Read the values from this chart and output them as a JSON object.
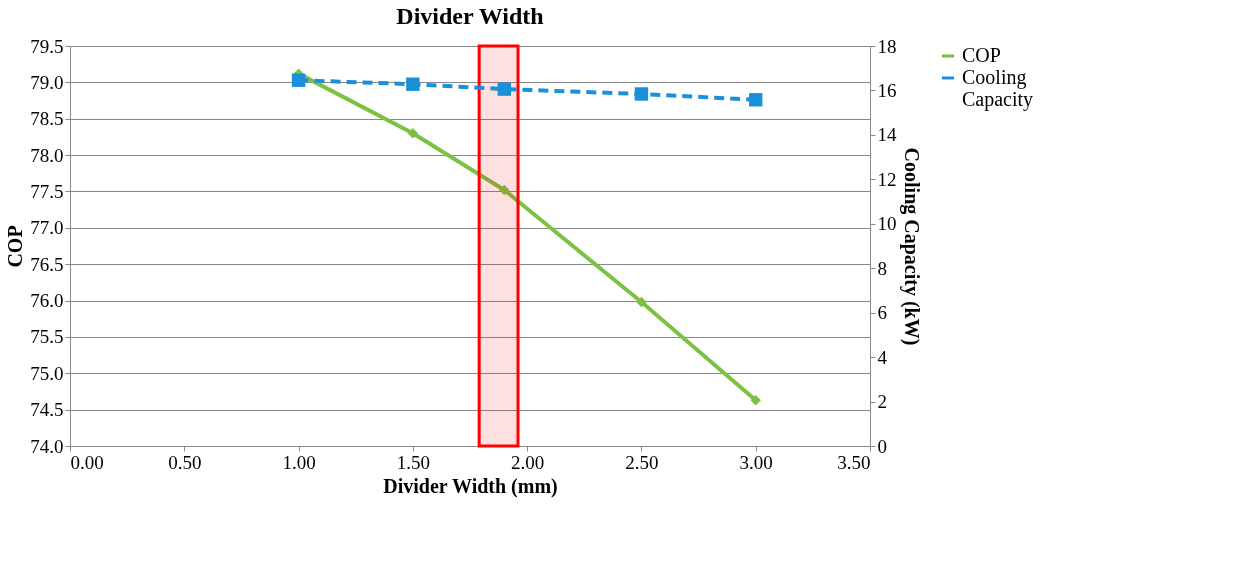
{
  "chart_data": {
    "type": "line",
    "title": "Divider Width",
    "xlabel": "Divider Width (mm)",
    "ylabel": "COP",
    "y2label": "Cooling Capacity (kW)",
    "x": [
      1.0,
      1.5,
      1.9,
      2.5,
      3.0
    ],
    "series": [
      {
        "name": "COP",
        "color": "#7cc242",
        "marker": "diamond",
        "line_style": "solid",
        "values": [
          79.12,
          78.3,
          77.52,
          75.98,
          74.63
        ]
      },
      {
        "name": "Cooling Capacity",
        "color": "#1a90d8",
        "marker": "square",
        "line_style": "dashed",
        "axis": "y2",
        "values": [
          16.46,
          16.28,
          16.06,
          15.84,
          15.58
        ]
      }
    ],
    "xlim": [
      0,
      3.5
    ],
    "xticks": [
      {
        "value": 0,
        "label": "0.00"
      },
      {
        "value": 0.5,
        "label": "0.50"
      },
      {
        "value": 1,
        "label": "1.00"
      },
      {
        "value": 1.5,
        "label": "1.50"
      },
      {
        "value": 2,
        "label": "2.00"
      },
      {
        "value": 2.5,
        "label": "2.50"
      },
      {
        "value": 3,
        "label": "3.00"
      },
      {
        "value": 3.5,
        "label": "3.50"
      }
    ],
    "ylim": [
      74,
      79.5
    ],
    "yticks": [
      {
        "value": 74,
        "label": "74.0"
      },
      74.5,
      {
        "value": 75,
        "label": "75.0"
      },
      75.5,
      {
        "value": 76,
        "label": "76.0"
      },
      76.5,
      {
        "value": 77,
        "label": "77.0"
      },
      77.5,
      {
        "value": 78,
        "label": "78.0"
      },
      78.5,
      {
        "value": 79,
        "label": "79.0"
      },
      79.5
    ],
    "y2lim": [
      0,
      18
    ],
    "y2ticks": [
      0,
      2,
      4,
      6,
      8,
      10,
      12,
      14,
      16,
      18
    ],
    "grid": "y",
    "legend": "top right",
    "bands": [
      {
        "axis": "x",
        "from": 1.79,
        "to": 1.96,
        "color": "#ff0000"
      }
    ]
  }
}
